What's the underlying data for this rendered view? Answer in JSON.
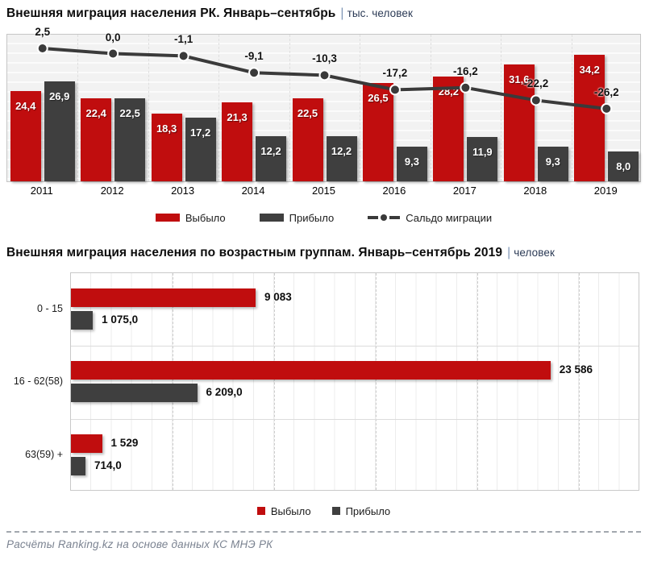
{
  "colors": {
    "red": "#C00D0E",
    "dark": "#3F3F3F",
    "line": "#3A3A3A",
    "navy": "#2B3A55"
  },
  "chart1": {
    "title": "Внешняя миграция населения РК.  Январь–сентябрь",
    "separator": "|",
    "unit": "тыс. человек",
    "legend": [
      {
        "label": "Выбыло"
      },
      {
        "label": "Прибыло"
      },
      {
        "label": "Сальдо миграции"
      }
    ]
  },
  "chart2": {
    "title": "Внешняя миграция населения по  возрастным группам. Январь–сентябрь 2019",
    "separator": "|",
    "unit": "человек",
    "legend": [
      {
        "label": "Выбыло"
      },
      {
        "label": "Прибыло"
      }
    ]
  },
  "footer": {
    "text": "Расчёты Ranking.kz на основе данных КС МНЭ РК"
  },
  "chart_data": [
    {
      "type": "bar",
      "subtype": "bar+line-combo",
      "title": "Внешняя миграция населения РК. Январь–сентябрь (тыс. человек)",
      "categories": [
        "2011",
        "2012",
        "2013",
        "2014",
        "2015",
        "2016",
        "2017",
        "2018",
        "2019"
      ],
      "series": [
        {
          "name": "Выбыло",
          "type": "bar",
          "color": "#C00D0E",
          "values": [
            24.4,
            22.4,
            18.3,
            21.3,
            22.5,
            26.5,
            28.2,
            31.6,
            34.2
          ],
          "labels": [
            "24,4",
            "22,4",
            "18,3",
            "21,3",
            "22,5",
            "26,5",
            "28,2",
            "31,6",
            "34,2"
          ]
        },
        {
          "name": "Прибыло",
          "type": "bar",
          "color": "#3F3F3F",
          "values": [
            26.9,
            22.5,
            17.2,
            12.2,
            12.2,
            9.3,
            11.9,
            9.3,
            8.0
          ],
          "labels": [
            "26,9",
            "22,5",
            "17,2",
            "12,2",
            "12,2",
            "9,3",
            "11,9",
            "9,3",
            "8,0"
          ]
        },
        {
          "name": "Сальдо миграции",
          "type": "line",
          "color": "#3A3A3A",
          "values": [
            2.5,
            0.0,
            -1.1,
            -9.1,
            -10.3,
            -17.2,
            -16.2,
            -22.2,
            -26.2
          ],
          "labels": [
            "2,5",
            "0,0",
            "-1,1",
            "-9,1",
            "-10,3",
            "-17,2",
            "-16,2",
            "-22,2",
            "-26,2"
          ]
        }
      ],
      "ylim_bars": [
        0,
        40
      ],
      "ylim_line": [
        -30,
        5
      ],
      "grid": "horizontal-stripes",
      "legend_position": "bottom"
    },
    {
      "type": "bar",
      "orientation": "horizontal",
      "title": "Внешняя миграция населения по возрастным группам. Январь–сентябрь 2019 (человек)",
      "categories": [
        "0 - 15",
        "16 - 62(58)",
        "63(59) +"
      ],
      "series": [
        {
          "name": "Выбыло",
          "color": "#C00D0E",
          "values": [
            9083,
            23586,
            1529
          ],
          "labels": [
            "9 083",
            "23 586",
            "1 529"
          ]
        },
        {
          "name": "Прибыло",
          "color": "#3F3F3F",
          "values": [
            1075,
            6209,
            714
          ],
          "labels": [
            "1 075,0",
            "6 209,0",
            "714,0"
          ]
        }
      ],
      "xlim": [
        0,
        28000
      ],
      "gridlines": {
        "minor": 1000,
        "major": 5000
      },
      "legend_position": "bottom"
    }
  ]
}
